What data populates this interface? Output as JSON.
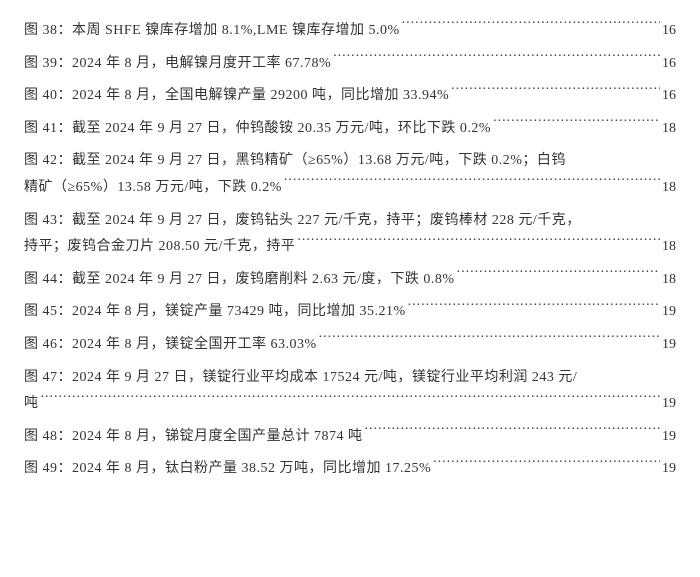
{
  "text_color": "#333333",
  "background_color": "#ffffff",
  "font_size_pt": 10.5,
  "entries": [
    {
      "label": "图 38：本周 SHFE 镍库存增加 8.1%,LME 镍库存增加 5.0%",
      "page": "16",
      "multiline": false
    },
    {
      "label": "图 39：2024 年 8 月，电解镍月度开工率 67.78%",
      "page": "16",
      "multiline": false
    },
    {
      "label": "图 40：2024 年 8 月，全国电解镍产量 29200 吨，同比增加 33.94%",
      "page": "16",
      "multiline": false
    },
    {
      "label": "图 41：截至 2024 年 9 月 27 日，仲钨酸铵 20.35 万元/吨，环比下跌 0.2%",
      "page": "18",
      "multiline": false
    },
    {
      "label_line1": "图 42：截至 2024 年 9 月 27 日，黑钨精矿（≥65%）13.68 万元/吨，下跌 0.2%；白钨",
      "label_line2": "精矿（≥65%）13.58 万元/吨，下跌 0.2%",
      "page": "18",
      "multiline": true
    },
    {
      "label_line1": "图 43：截至 2024 年 9 月 27 日，废钨钻头 227 元/千克，持平；废钨棒材 228 元/千克，",
      "label_line2": "持平；废钨合金刀片 208.50 元/千克，持平",
      "page": "18",
      "multiline": true
    },
    {
      "label": "图 44：截至 2024 年 9 月 27 日，废钨磨削料 2.63 元/度，下跌 0.8%",
      "page": "18",
      "multiline": false
    },
    {
      "label": "图 45：2024 年 8 月，镁锭产量 73429 吨，同比增加 35.21%",
      "page": "19",
      "multiline": false
    },
    {
      "label": "图 46：2024 年 8 月，镁锭全国开工率 63.03%",
      "page": "19",
      "multiline": false
    },
    {
      "label_line1": "图 47：2024 年 9 月 27 日，镁锭行业平均成本 17524 元/吨，镁锭行业平均利润 243 元/",
      "label_line2": "吨",
      "page": "19",
      "multiline": true
    },
    {
      "label": "图 48：2024 年 8 月，锑锭月度全国产量总计 7874 吨",
      "page": "19",
      "multiline": false
    },
    {
      "label": "图 49：2024 年 8 月，钛白粉产量 38.52 万吨，同比增加 17.25%",
      "page": "19",
      "multiline": false
    }
  ]
}
